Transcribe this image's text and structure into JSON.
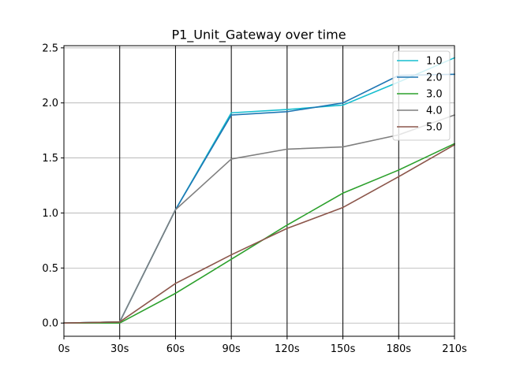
{
  "chart_data": {
    "type": "line",
    "title": "P1_Unit_Gateway over time",
    "xlabel": "",
    "ylabel": "",
    "x": [
      0,
      30,
      60,
      90,
      120,
      150,
      180,
      210
    ],
    "x_tick_labels": [
      "0s",
      "30s",
      "60s",
      "90s",
      "120s",
      "150s",
      "180s",
      "210s"
    ],
    "xlim": [
      0,
      210
    ],
    "ylim": [
      -0.12,
      2.52
    ],
    "y_ticks": [
      0.0,
      0.5,
      1.0,
      1.5,
      2.0,
      2.5
    ],
    "y_tick_labels": [
      "0.0",
      "0.5",
      "1.0",
      "1.5",
      "2.0",
      "2.5"
    ],
    "grid": "horizontal gray, vertical black at x ticks",
    "legend": "top-right",
    "series": [
      {
        "name": "1.0",
        "color": "#17becf",
        "values": [
          0.0,
          0.01,
          1.03,
          1.91,
          1.94,
          1.98,
          2.19,
          2.41
        ]
      },
      {
        "name": "2.0",
        "color": "#1f77b4",
        "values": [
          0.0,
          0.01,
          1.03,
          1.89,
          1.92,
          2.0,
          2.25,
          2.26
        ]
      },
      {
        "name": "3.0",
        "color": "#2ca02c",
        "values": [
          0.0,
          0.0,
          0.27,
          0.58,
          0.89,
          1.18,
          1.39,
          1.63
        ]
      },
      {
        "name": "4.0",
        "color": "#7f7f7f",
        "values": [
          0.0,
          0.01,
          1.03,
          1.49,
          1.58,
          1.6,
          1.71,
          1.89
        ]
      },
      {
        "name": "5.0",
        "color": "#8c564b",
        "values": [
          0.0,
          0.01,
          0.36,
          0.62,
          0.86,
          1.05,
          1.33,
          1.62
        ]
      }
    ]
  }
}
